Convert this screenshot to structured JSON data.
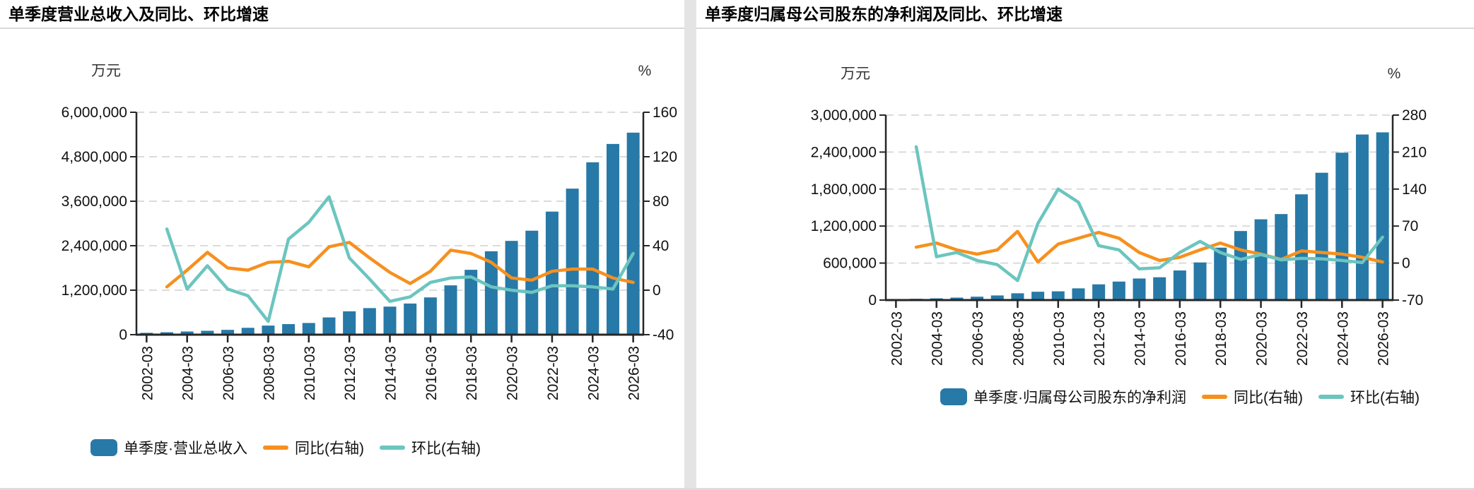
{
  "page": {
    "divider_color": "#e4e4e4",
    "accent_colors": {
      "bar_blue": "#2779A7",
      "yoy_orange": "#F6901E",
      "qoq_teal": "#6CC5BF"
    }
  },
  "chart_data": [
    {
      "type": "bar",
      "title": "单季度营业总收入及同比、环比增速",
      "unit_left": "万元",
      "unit_right": "%",
      "grid": "horizontal-dashed",
      "legend_position": "bottom-left",
      "categories": [
        "2002-03",
        "2003-03",
        "2004-03",
        "2005-03",
        "2006-03",
        "2007-03",
        "2008-03",
        "2009-03",
        "2010-03",
        "2011-03",
        "2012-03",
        "2013-03",
        "2014-03",
        "2015-03",
        "2016-03",
        "2017-03",
        "2018-03",
        "2019-03",
        "2020-03",
        "2021-03",
        "2022-03",
        "2023-03",
        "2024-03",
        "2025-03",
        "2026-03"
      ],
      "x_tick_labels": [
        "2002-03",
        "2004-03",
        "2006-03",
        "2008-03",
        "2010-03",
        "2012-03",
        "2014-03",
        "2016-03",
        "2018-03",
        "2020-03",
        "2022-03",
        "2024-03",
        "2026-03"
      ],
      "left_axis": {
        "min": 0,
        "max": 6000000,
        "tick_step": 1200000,
        "tick_labels": [
          "6,000,000",
          "4,800,000",
          "3,600,000",
          "2,400,000",
          "1,200,000",
          "0"
        ]
      },
      "right_axis": {
        "min": -40,
        "max": 160,
        "tick_step": 40,
        "tick_labels": [
          "160",
          "120",
          "80",
          "40",
          "0",
          "-40"
        ]
      },
      "series": [
        {
          "key": "revenue-bars",
          "name": "单季度·营业总收入",
          "type": "bar",
          "axis": "left",
          "color": "#2779A7",
          "values": [
            50000,
            65000,
            86000,
            105000,
            130000,
            185000,
            245000,
            285000,
            315000,
            465000,
            630000,
            717000,
            757000,
            840000,
            1005000,
            1330000,
            1750000,
            2250000,
            2530000,
            2805000,
            3320000,
            3940000,
            4650000,
            5145000,
            5450000
          ]
        },
        {
          "key": "yoy-line",
          "name": "同比(右轴)",
          "type": "line",
          "axis": "right",
          "color": "#F6901E",
          "values": [
            null,
            3,
            18,
            34,
            20,
            18,
            25,
            26,
            21,
            39,
            43,
            29,
            16,
            6,
            17,
            36,
            33,
            25,
            11,
            9,
            17,
            19,
            19,
            11,
            7
          ]
        },
        {
          "key": "qoq-line",
          "name": "环比(右轴)",
          "type": "line",
          "axis": "right",
          "color": "#6CC5BF",
          "values": [
            null,
            55,
            1,
            22,
            1,
            -5,
            -28,
            46,
            61,
            84,
            29,
            10,
            -10,
            -6,
            7,
            11,
            12,
            3,
            0,
            -2,
            4,
            4,
            3,
            1,
            33
          ]
        }
      ]
    },
    {
      "type": "bar",
      "title": "单季度归属母公司股东的净利润及同比、环比增速",
      "unit_left": "万元",
      "unit_right": "%",
      "grid": "horizontal-dashed",
      "legend_position": "bottom-left",
      "categories": [
        "2002-03",
        "2003-03",
        "2004-03",
        "2005-03",
        "2006-03",
        "2007-03",
        "2008-03",
        "2009-03",
        "2010-03",
        "2011-03",
        "2012-03",
        "2013-03",
        "2014-03",
        "2015-03",
        "2016-03",
        "2017-03",
        "2018-03",
        "2019-03",
        "2020-03",
        "2021-03",
        "2022-03",
        "2023-03",
        "2024-03",
        "2025-03",
        "2026-03"
      ],
      "x_tick_labels": [
        "2002-03",
        "2004-03",
        "2006-03",
        "2008-03",
        "2010-03",
        "2012-03",
        "2014-03",
        "2016-03",
        "2018-03",
        "2020-03",
        "2022-03",
        "2024-03",
        "2026-03"
      ],
      "left_axis": {
        "min": 0,
        "max": 3000000,
        "tick_step": 600000,
        "tick_labels": [
          "3,000,000",
          "2,400,000",
          "1,800,000",
          "1,200,000",
          "600,000",
          "0"
        ]
      },
      "right_axis": {
        "min": -70,
        "max": 280,
        "tick_step": 70,
        "tick_labels": [
          "280",
          "210",
          "140",
          "70",
          "0",
          "-70"
        ]
      },
      "series": [
        {
          "key": "profit-bars",
          "name": "单季度·归属母公司股东的净利润",
          "type": "bar",
          "axis": "left",
          "color": "#2779A7",
          "values": [
            16000,
            21000,
            28000,
            40000,
            55000,
            75000,
            110000,
            135000,
            142000,
            190000,
            255000,
            300000,
            350000,
            370000,
            480000,
            610000,
            850000,
            1120000,
            1310000,
            1395000,
            1715000,
            2065000,
            2390000,
            2685000,
            2720000
          ]
        },
        {
          "key": "yoy-line",
          "name": "同比(右轴)",
          "type": "line",
          "axis": "right",
          "color": "#F6901E",
          "values": [
            null,
            30,
            38,
            25,
            17,
            25,
            60,
            2,
            36,
            47,
            58,
            47,
            20,
            5,
            11,
            25,
            38,
            25,
            17,
            7,
            23,
            20,
            17,
            11,
            2
          ]
        },
        {
          "key": "qoq-line",
          "name": "环比(右轴)",
          "type": "line",
          "axis": "right",
          "color": "#6CC5BF",
          "values": [
            null,
            220,
            12,
            20,
            5,
            -3,
            -33,
            75,
            140,
            115,
            33,
            25,
            -11,
            -9,
            20,
            41,
            20,
            7,
            16,
            6,
            9,
            8,
            5,
            1,
            49
          ]
        }
      ]
    }
  ]
}
